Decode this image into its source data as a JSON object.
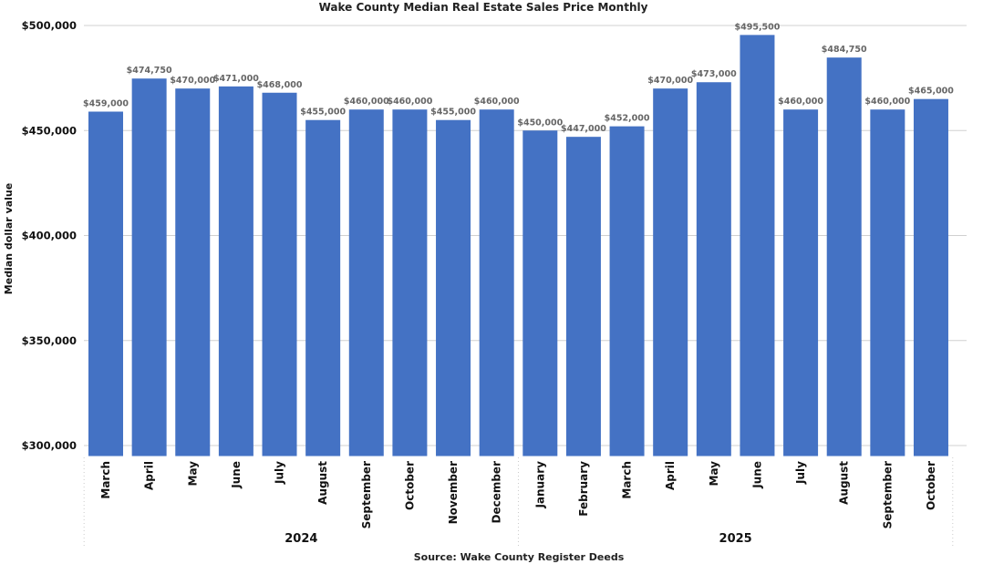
{
  "chart_data": {
    "type": "bar",
    "title": "Wake County Median Real Estate Sales Price Monthly",
    "ylabel": "Median dollar value",
    "xlabel": "",
    "source": "Source: Wake County Register Deeds",
    "ylim": [
      295000,
      500000
    ],
    "yticks": [
      300000,
      350000,
      400000,
      450000,
      500000
    ],
    "ytick_labels": [
      "$300,000",
      "$350,000",
      "$400,000",
      "$450,000",
      "$500,000"
    ],
    "grid": true,
    "bar_color": "#4472C4",
    "groups": [
      {
        "label": "2024",
        "categories": [
          "March",
          "April",
          "May",
          "June",
          "July",
          "August",
          "September",
          "October",
          "November",
          "December"
        ]
      },
      {
        "label": "2025",
        "categories": [
          "January",
          "February",
          "March",
          "April",
          "May",
          "June",
          "July",
          "August",
          "September",
          "October"
        ]
      }
    ],
    "values": [
      459000,
      474750,
      470000,
      471000,
      468000,
      455000,
      460000,
      460000,
      455000,
      460000,
      450000,
      447000,
      452000,
      470000,
      473000,
      495500,
      460000,
      484750,
      460000,
      465000
    ],
    "data_labels": [
      "$459,000",
      "$474,750",
      "$470,000",
      "$471,000",
      "$468,000",
      "$455,000",
      "$460,000",
      "$460,000",
      "$455,000",
      "$460,000",
      "$450,000",
      "$447,000",
      "$452,000",
      "$470,000",
      "$473,000",
      "$495,500",
      "$460,000",
      "$484,750",
      "$460,000",
      "$465,000"
    ]
  }
}
